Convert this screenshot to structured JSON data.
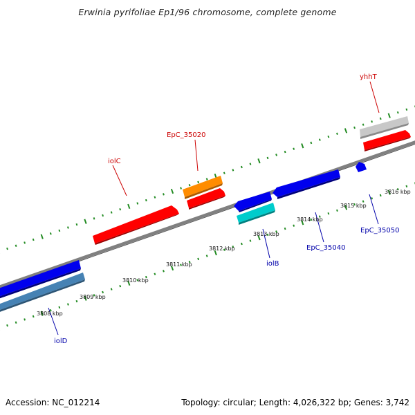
{
  "title": "Erwinia pyrifoliae Ep1/96 chromosome, complete genome",
  "footer": {
    "accession": "Accession: NC_012214",
    "info": "Topology: circular; Length: 4,026,322 bp; Genes: 3,742"
  },
  "colors": {
    "forward_label": "#cc0000",
    "reverse_label": "#0000aa",
    "backbone": "#808080",
    "tick": "#228b22"
  },
  "genes": [
    {
      "id": "iolC",
      "label": "iolC",
      "strand": "forward",
      "color": "#ff0000"
    },
    {
      "id": "EpC_35020",
      "label": "EpC_35020",
      "strand": "forward",
      "color": "#ff0000"
    },
    {
      "id": "EpC_35020_orange",
      "label": "",
      "strand": "forward",
      "color": "#ff8c00"
    },
    {
      "id": "yhhT",
      "label": "yhhT",
      "strand": "forward",
      "color": "#ff0000"
    },
    {
      "id": "yhhT_gray",
      "label": "",
      "strand": "forward",
      "color": "#bdbdbd"
    },
    {
      "id": "iolD",
      "label": "iolD",
      "strand": "reverse",
      "color": "#0000ee"
    },
    {
      "id": "iolD_steel",
      "label": "",
      "strand": "reverse",
      "color": "#4682b4"
    },
    {
      "id": "iolB",
      "label": "iolB",
      "strand": "reverse",
      "color": "#0000ee"
    },
    {
      "id": "iolB_cyan",
      "label": "",
      "strand": "reverse",
      "color": "#00cccc"
    },
    {
      "id": "EpC_35040",
      "label": "EpC_35040",
      "strand": "reverse",
      "color": "#0000ee"
    },
    {
      "id": "EpC_35050",
      "label": "EpC_35050",
      "strand": "reverse",
      "color": "#0000ee"
    }
  ],
  "scale_labels": [
    "3808 kbp",
    "3809 kbp",
    "3810 kbp",
    "3811 kbp",
    "3812 kbp",
    "3813 kbp",
    "3814 kbp",
    "3815 kbp",
    "3816 kbp"
  ]
}
